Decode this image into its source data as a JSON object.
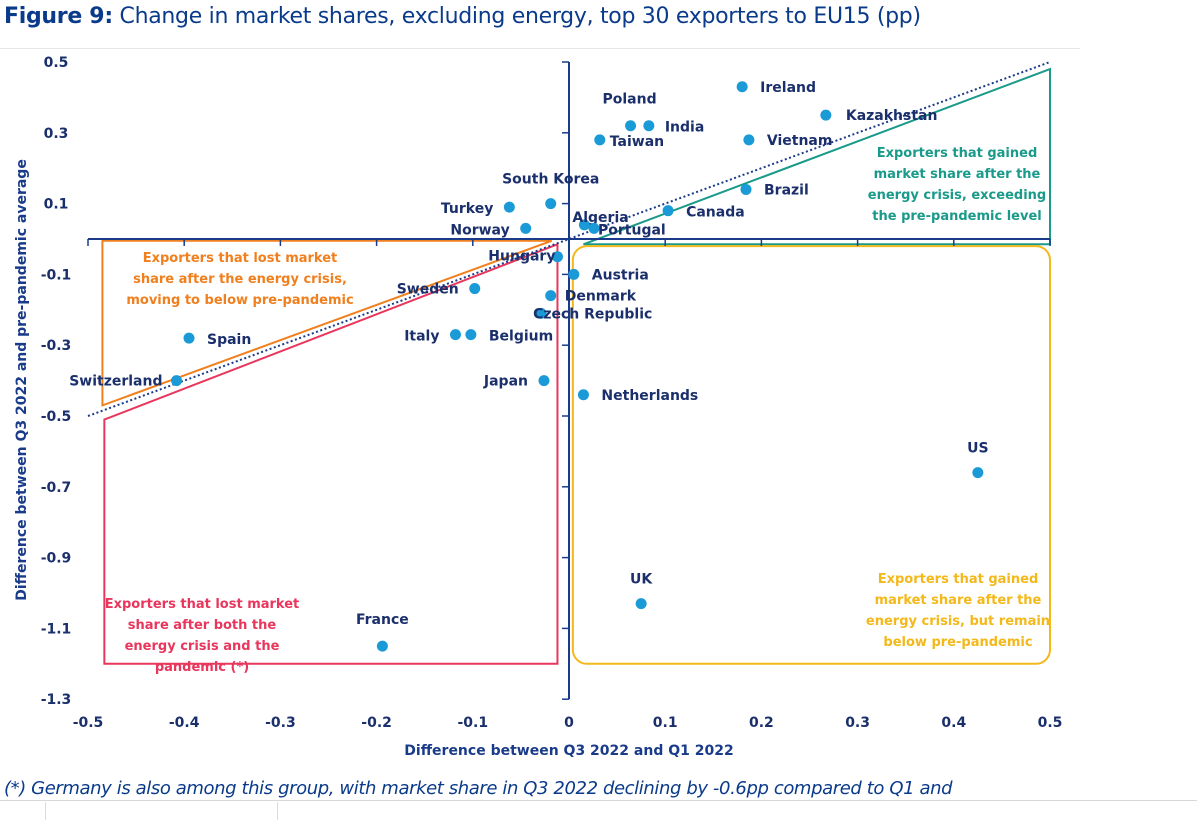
{
  "figure": {
    "label": "Figure 9:",
    "title": "Change in market shares, excluding energy, top 30 exporters to EU15 (pp)",
    "footnote": "(*) Germany is also among this group, with market share in Q3 2022 declining by -0.6pp compared to Q1 and"
  },
  "colors": {
    "point": "#1a9ad6",
    "axis": "#1a3b8a",
    "teal": "#1a9a8a",
    "orange": "#f07f1e",
    "pink": "#e8365d",
    "yellow": "#f3b81a",
    "text": "#1a2f6b"
  },
  "chart_data": {
    "type": "scatter",
    "title": "Change in market shares, excluding energy, top 30 exporters to EU15 (pp)",
    "xlabel": "Difference between Q3 2022 and Q1 2022",
    "ylabel": "Difference between Q3 2022 and pre-pandemic average",
    "xlim": [
      -0.5,
      0.5
    ],
    "ylim": [
      -1.3,
      0.5
    ],
    "xticks": [
      "-0.5",
      "-0.4",
      "-0.3",
      "-0.2",
      "-0.1",
      "0",
      "0.1",
      "0.2",
      "0.3",
      "0.4",
      "0.5"
    ],
    "yticks": [
      "0.5",
      "0.3",
      "0.1",
      "-0.1",
      "-0.3",
      "-0.5",
      "-0.7",
      "-0.9",
      "-1.1",
      "-1.3"
    ],
    "grid": false,
    "reference_line": "y = x (dotted)",
    "points": [
      {
        "name": "Ireland",
        "x": 0.18,
        "y": 0.43
      },
      {
        "name": "Kazakhstan",
        "x": 0.267,
        "y": 0.35
      },
      {
        "name": "Poland",
        "x": 0.064,
        "y": 0.32
      },
      {
        "name": "India",
        "x": 0.083,
        "y": 0.32
      },
      {
        "name": "Taiwan",
        "x": 0.032,
        "y": 0.28
      },
      {
        "name": "Vietnam",
        "x": 0.187,
        "y": 0.28
      },
      {
        "name": "Brazil",
        "x": 0.184,
        "y": 0.14
      },
      {
        "name": "Canada",
        "x": 0.103,
        "y": 0.08
      },
      {
        "name": "South Korea",
        "x": -0.019,
        "y": 0.1
      },
      {
        "name": "Turkey",
        "x": -0.062,
        "y": 0.09
      },
      {
        "name": "Norway",
        "x": -0.045,
        "y": 0.03
      },
      {
        "name": "Algeria",
        "x": 0.016,
        "y": 0.04
      },
      {
        "name": "Portugal",
        "x": 0.026,
        "y": 0.03
      },
      {
        "name": "Hungary",
        "x": -0.012,
        "y": -0.05
      },
      {
        "name": "Austria",
        "x": 0.005,
        "y": -0.1
      },
      {
        "name": "Sweden",
        "x": -0.098,
        "y": -0.14
      },
      {
        "name": "Denmark",
        "x": -0.019,
        "y": -0.16
      },
      {
        "name": "Czech Republic",
        "x": -0.029,
        "y": -0.21
      },
      {
        "name": "Italy",
        "x": -0.118,
        "y": -0.27
      },
      {
        "name": "Belgium",
        "x": -0.102,
        "y": -0.27
      },
      {
        "name": "Spain",
        "x": -0.395,
        "y": -0.28
      },
      {
        "name": "Switzerland",
        "x": -0.408,
        "y": -0.4
      },
      {
        "name": "Japan",
        "x": -0.026,
        "y": -0.4
      },
      {
        "name": "Netherlands",
        "x": 0.015,
        "y": -0.44
      },
      {
        "name": "US",
        "x": 0.425,
        "y": -0.66
      },
      {
        "name": "UK",
        "x": 0.075,
        "y": -1.03
      },
      {
        "name": "France",
        "x": -0.194,
        "y": -1.15
      }
    ],
    "annotations": [
      {
        "id": "teal",
        "lines": [
          "Exporters that gained",
          "market share after the",
          "energy crisis, exceeding",
          "the pre-pandemic level"
        ]
      },
      {
        "id": "orange",
        "lines": [
          "Exporters that lost market",
          "share after the energy crisis,",
          "moving to below pre-pandemic"
        ]
      },
      {
        "id": "pink",
        "lines": [
          "Exporters that lost market",
          "share after both the",
          "energy crisis and the",
          "pandemic (*)"
        ]
      },
      {
        "id": "yellow",
        "lines": [
          "Exporters that gained",
          "market share after the",
          "energy crisis, but remain",
          "below pre-pandemic"
        ]
      }
    ]
  }
}
